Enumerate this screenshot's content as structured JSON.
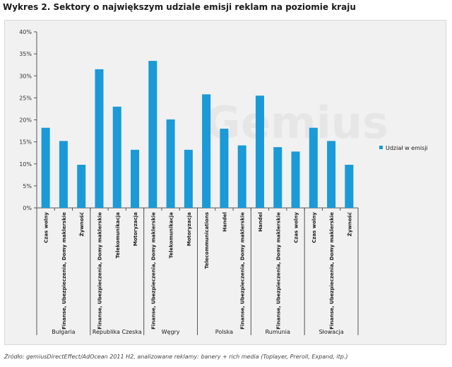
{
  "title": "Wykres 2. Sektory o największym udziale emisji reklam na poziomie kraju",
  "source": "Źródło: gemiusDirectEffect/AdOcean 2011 H2, analizowane reklamy: banery + rich media (Toplayer, Preroll, Expand, itp.)",
  "watermark": "Gemius",
  "chart_data": {
    "type": "bar",
    "title": "Wykres 2. Sektory o największym udziale emisji reklam na poziomie kraju",
    "xlabel": "",
    "ylabel": "",
    "ylim": [
      0,
      40
    ],
    "yticks": [
      "0%",
      "5%",
      "10%",
      "15%",
      "20%",
      "25%",
      "30%",
      "35%",
      "40%"
    ],
    "grid": false,
    "legend_position": "right",
    "color": "#1a9ad7",
    "series": [
      {
        "name": "Udział w emisji",
        "values": [
          18.2,
          15.2,
          9.8,
          31.5,
          23.0,
          13.2,
          33.4,
          20.1,
          13.2,
          25.8,
          18.0,
          14.2,
          25.5,
          13.8,
          12.8,
          18.2,
          15.2,
          9.8
        ]
      }
    ],
    "categories": [
      "Czas wolny",
      "Finanse, Ubezpieczenia, Domy maklerskie",
      "Żywność",
      "Finanse, Ubezpieczenia, Domy maklerskie",
      "Telekomunikacja",
      "Motoryzacja",
      "Finanse, Ubezpieczenia, Domy maklerskie",
      "Telekomunikacja",
      "Motoryzacja",
      "Telecommunications",
      "Handel",
      "Finanse, Ubezpieczenia, Domy maklerskie",
      "Handel",
      "Finanse, Ubezpieczenia, Domy maklerskie",
      "Czas wolny",
      "Czas wolny",
      "Finanse, Ubezpieczenia, Domy maklerskie",
      "Żywność"
    ],
    "groups": [
      {
        "label": "Bułgaria",
        "count": 3
      },
      {
        "label": "Republika Czeska",
        "count": 3
      },
      {
        "label": "Węgry",
        "count": 3
      },
      {
        "label": "Polska",
        "count": 3
      },
      {
        "label": "Rumunia",
        "count": 3
      },
      {
        "label": "Słowacja",
        "count": 3
      }
    ]
  }
}
